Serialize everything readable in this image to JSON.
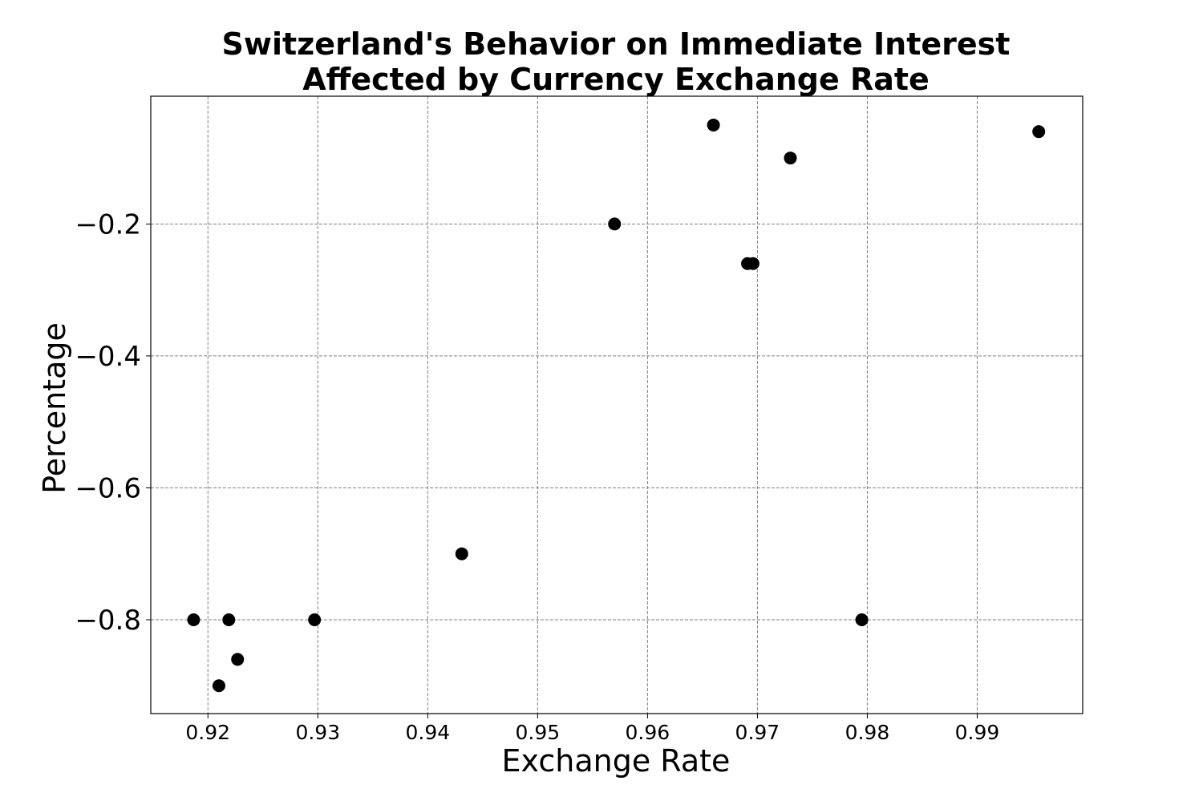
{
  "chart_data": {
    "type": "scatter",
    "title": "Switzerland's Behavior on Immediate Interest Affected by Currency Exchange Rate",
    "title_lines": [
      "Switzerland's Behavior on Immediate Interest",
      "Affected by Currency Exchange Rate"
    ],
    "xlabel": "Exchange Rate",
    "ylabel": "Percentage",
    "xlim": [
      0.9148,
      0.9996
    ],
    "ylim": [
      -0.9422,
      -0.0063
    ],
    "x_ticks": [
      0.92,
      0.93,
      0.94,
      0.95,
      0.96,
      0.97,
      0.98,
      0.99
    ],
    "x_tick_labels": [
      "0.92",
      "0.93",
      "0.94",
      "0.95",
      "0.96",
      "0.97",
      "0.98",
      "0.99"
    ],
    "y_ticks": [
      -0.2,
      -0.4,
      -0.6,
      -0.8
    ],
    "y_tick_labels": [
      "−0.2",
      "−0.4",
      "−0.6",
      "−0.8"
    ],
    "grid": true,
    "marker_color": "#000000",
    "points": [
      {
        "x": 0.9187,
        "y": -0.8
      },
      {
        "x": 0.921,
        "y": -0.9
      },
      {
        "x": 0.9219,
        "y": -0.8
      },
      {
        "x": 0.9227,
        "y": -0.86
      },
      {
        "x": 0.9297,
        "y": -0.8
      },
      {
        "x": 0.9431,
        "y": -0.7
      },
      {
        "x": 0.957,
        "y": -0.2
      },
      {
        "x": 0.966,
        "y": -0.05
      },
      {
        "x": 0.9691,
        "y": -0.26
      },
      {
        "x": 0.9696,
        "y": -0.26
      },
      {
        "x": 0.973,
        "y": -0.1
      },
      {
        "x": 0.9795,
        "y": -0.8
      },
      {
        "x": 0.9956,
        "y": -0.06
      }
    ]
  }
}
